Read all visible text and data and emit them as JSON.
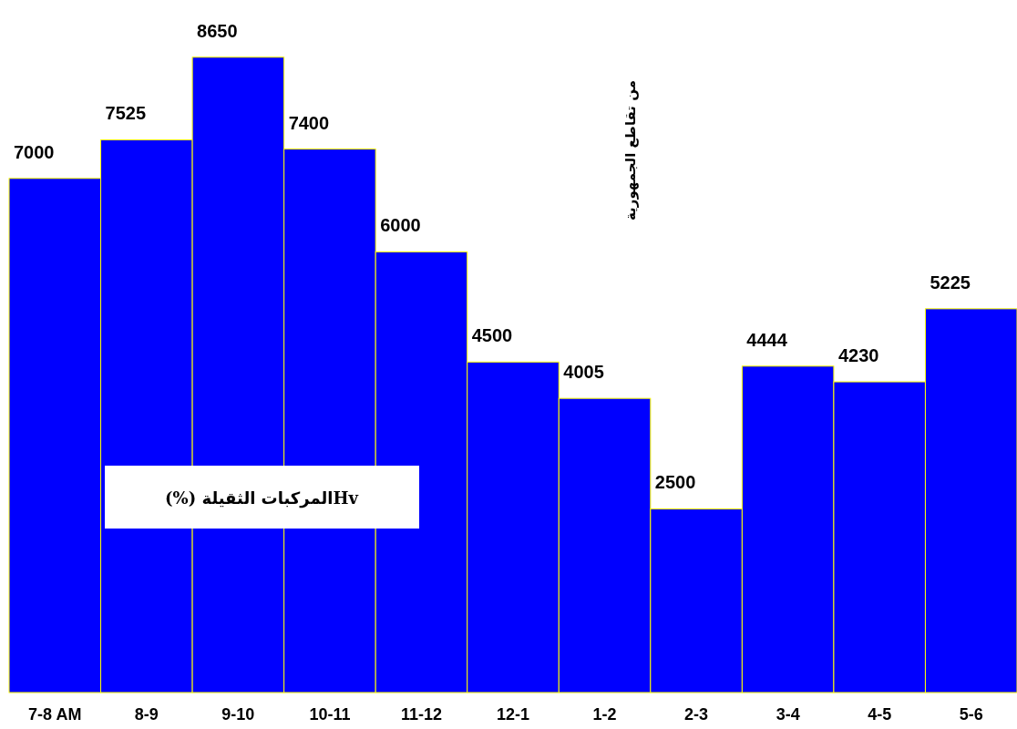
{
  "chart_data": {
    "type": "bar",
    "categories": [
      "7-8 AM",
      "8-9",
      "9-10",
      "10-11",
      "11-12",
      "12-1",
      "1-2",
      "2-3",
      "3-4",
      "4-5",
      "5-6"
    ],
    "values": [
      7000,
      7525,
      8650,
      7400,
      6000,
      4500,
      4005,
      2500,
      4444,
      4230,
      5225
    ],
    "color": "#0000ff",
    "data_labels": true,
    "annotations": [
      "من تقاطع الجمهورية",
      "Hvالمركبات الثقيلة (%)"
    ]
  }
}
